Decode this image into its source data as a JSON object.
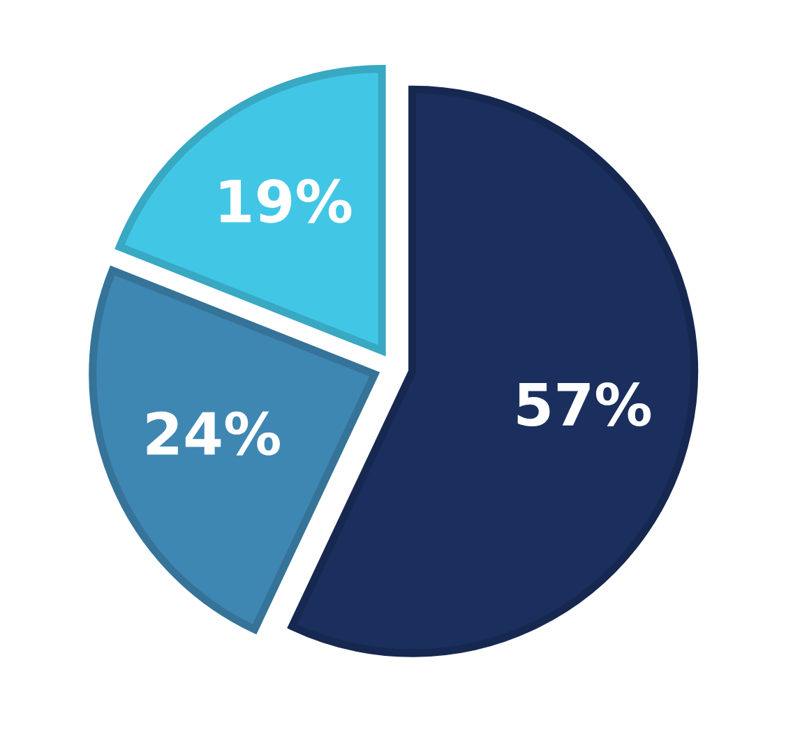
{
  "chart_data": {
    "type": "pie",
    "categories": [
      null,
      null,
      null
    ],
    "values": [
      57,
      24,
      19
    ],
    "colors": [
      "#1b2f5e",
      "#3f87b3",
      "#42c6e6"
    ],
    "value_labels": [
      "57%",
      "24%",
      "19%"
    ]
  }
}
